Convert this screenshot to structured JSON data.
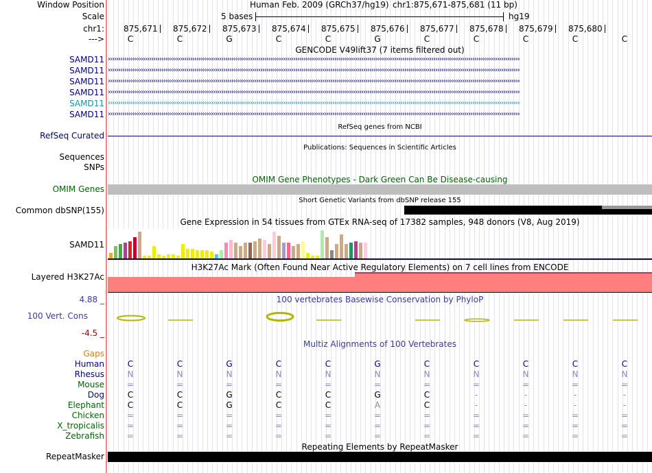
{
  "labels": {
    "window_position": "Window Position",
    "scale": "Scale",
    "chr": "chr1:",
    "arrow": "--->",
    "samd11": "SAMD11",
    "refseq": "RefSeq Curated",
    "sequences": "Sequences",
    "snps": "SNPs",
    "omim": "OMIM Genes",
    "dbsnp": "Common dbSNP(155)",
    "gtex_gene": "SAMD11",
    "h3k27ac": "Layered H3K27Ac",
    "cons_max": "4.88 _",
    "cons": "100 Vert. Cons",
    "cons_min": "-4.5 _",
    "repeatmasker": "RepeatMasker"
  },
  "header": {
    "assembly_title": "Human Feb. 2009 (GRCh37/hg19)",
    "position": "chr1:875,671-875,681 (11 bp)",
    "scale_text": "5 bases",
    "scale_db": "hg19"
  },
  "coordinates": [
    "875,671",
    "875,672",
    "875,673",
    "875,674",
    "875,675",
    "875,676",
    "875,677",
    "875,678",
    "875,679",
    "875,680"
  ],
  "bases": [
    "C",
    "C",
    "G",
    "C",
    "C",
    "G",
    "C",
    "C",
    "C",
    "C",
    "C"
  ],
  "tracks": {
    "gencode_title": "GENCODE V49lift37 (7 items filtered out)",
    "gene_rows": [
      "SAMD11",
      "SAMD11",
      "SAMD11",
      "SAMD11",
      "SAMD11",
      "SAMD11"
    ],
    "refseq_title": "RefSeq genes from NCBI",
    "pubs_title": "Publications: Sequences in Scientific Articles",
    "omim_title": "OMIM Gene Phenotypes - Dark Green Can Be Disease-causing",
    "dbsnp_title": "Short Genetic Variants from dbSNP release 155",
    "gtex_title": "Gene Expression in 54 tissues from GTEx RNA-seq of 17382 samples, 948 donors (V8, Aug 2019)",
    "h3k_title": "H3K27Ac Mark (Often Found Near Active Regulatory Elements) on 7 cell lines from ENCODE",
    "cons_title": "100 vertebrates Basewise Conservation by PhyloP",
    "multiz_title": "Multiz Alignments of 100 Vertebrates",
    "repeat_title": "Repeating Elements by RepeatMasker"
  },
  "gtex_values": [
    0.2,
    0.45,
    0.5,
    0.55,
    0.6,
    0.75,
    0.95,
    0.1,
    0.1,
    0.45,
    0.15,
    0.1,
    0.15,
    0.15,
    0.1,
    0.5,
    0.35,
    0.35,
    0.3,
    0.3,
    0.3,
    0.25,
    0.15,
    0.3,
    0.55,
    0.65,
    0.55,
    0.45,
    0.55,
    0.55,
    0.6,
    0.7,
    0.65,
    0.5,
    0.95,
    0.8,
    0.55,
    0.55,
    0.45,
    0.5,
    0.6,
    0.2,
    0.1,
    0.1,
    1.0,
    0.75,
    0.3,
    0.5,
    0.85,
    0.5,
    0.55,
    0.6,
    0.55,
    0.55
  ],
  "gtex_colors": [
    "#FFAA00",
    "#88BB66",
    "#44AA44",
    "#AA4488",
    "#DD2222",
    "#BB0033",
    "#CCAA88",
    "#EEEE00",
    "#EEEE00",
    "#EEEE00",
    "#EEEE00",
    "#EEEE00",
    "#EEEE00",
    "#EEEE00",
    "#EEEE00",
    "#EEEE00",
    "#EEEE00",
    "#EEEE00",
    "#EEEE00",
    "#EEEE00",
    "#EEEE00",
    "#EEEE00",
    "#44CCEE",
    "#AAEEAA",
    "#FF88AA",
    "#FFBBCC",
    "#CCAA88",
    "#CCAA88",
    "#CCAA88",
    "#996655",
    "#CCAA88",
    "#CCAA88",
    "#FFCCDD",
    "#CCAA88",
    "#FFCCDD",
    "#CCAA88",
    "#AA99CC",
    "#FF6688",
    "#CCAA88",
    "#CCAA88",
    "#FFFF88",
    "#EEEE00",
    "#EEEE00",
    "#EEEE00",
    "#AAEEAA",
    "#CCAA88",
    "#888888",
    "#CCAA88",
    "#CCAA88",
    "#CCAA88",
    "#119966",
    "#AA4488",
    "#CCAA88",
    "#FFCCDD"
  ],
  "multiz": {
    "species": [
      "Gaps",
      "Human",
      "Rhesus",
      "Mouse",
      "Dog",
      "Elephant",
      "Chicken",
      "X_tropicalis",
      "Zebrafish"
    ],
    "rows": {
      "Human": [
        "C",
        "C",
        "G",
        "C",
        "C",
        "G",
        "C",
        "C",
        "C",
        "C",
        "C"
      ],
      "Rhesus": [
        "N",
        "N",
        "N",
        "N",
        "N",
        "N",
        "N",
        "N",
        "N",
        "N",
        "N"
      ],
      "Mouse": [
        "=",
        "=",
        "=",
        "=",
        "=",
        "=",
        "=",
        "=",
        "=",
        "=",
        "="
      ],
      "Dog": [
        "C",
        "C",
        "G",
        "C",
        "C",
        "G",
        "C",
        "-",
        "-",
        "-",
        "-"
      ],
      "Elephant": [
        "C",
        "C",
        "G",
        "C",
        "C",
        "A",
        "C",
        "-",
        "-",
        "-",
        "-"
      ],
      "Chicken": [
        "=",
        "=",
        "=",
        "=",
        "=",
        "=",
        "=",
        "=",
        "=",
        "=",
        "="
      ],
      "X_tropicalis": [
        "=",
        "=",
        "=",
        "=",
        "=",
        "=",
        "=",
        "=",
        "=",
        "=",
        "="
      ],
      "Zebrafish": [
        "=",
        "=",
        "=",
        "=",
        "=",
        "=",
        "=",
        "=",
        "=",
        "=",
        "="
      ]
    }
  },
  "colors": {
    "gene_navy": "#000080",
    "gene_teal": "#1B8FB4",
    "omim_gray": "#BEBEBE",
    "omim_green": "#006400",
    "h3k_pink": "#FF7F7F",
    "cons_olive": "#B4B400",
    "gaps_orange": "#E08000",
    "conservation_blue": "#3B3B9A"
  }
}
